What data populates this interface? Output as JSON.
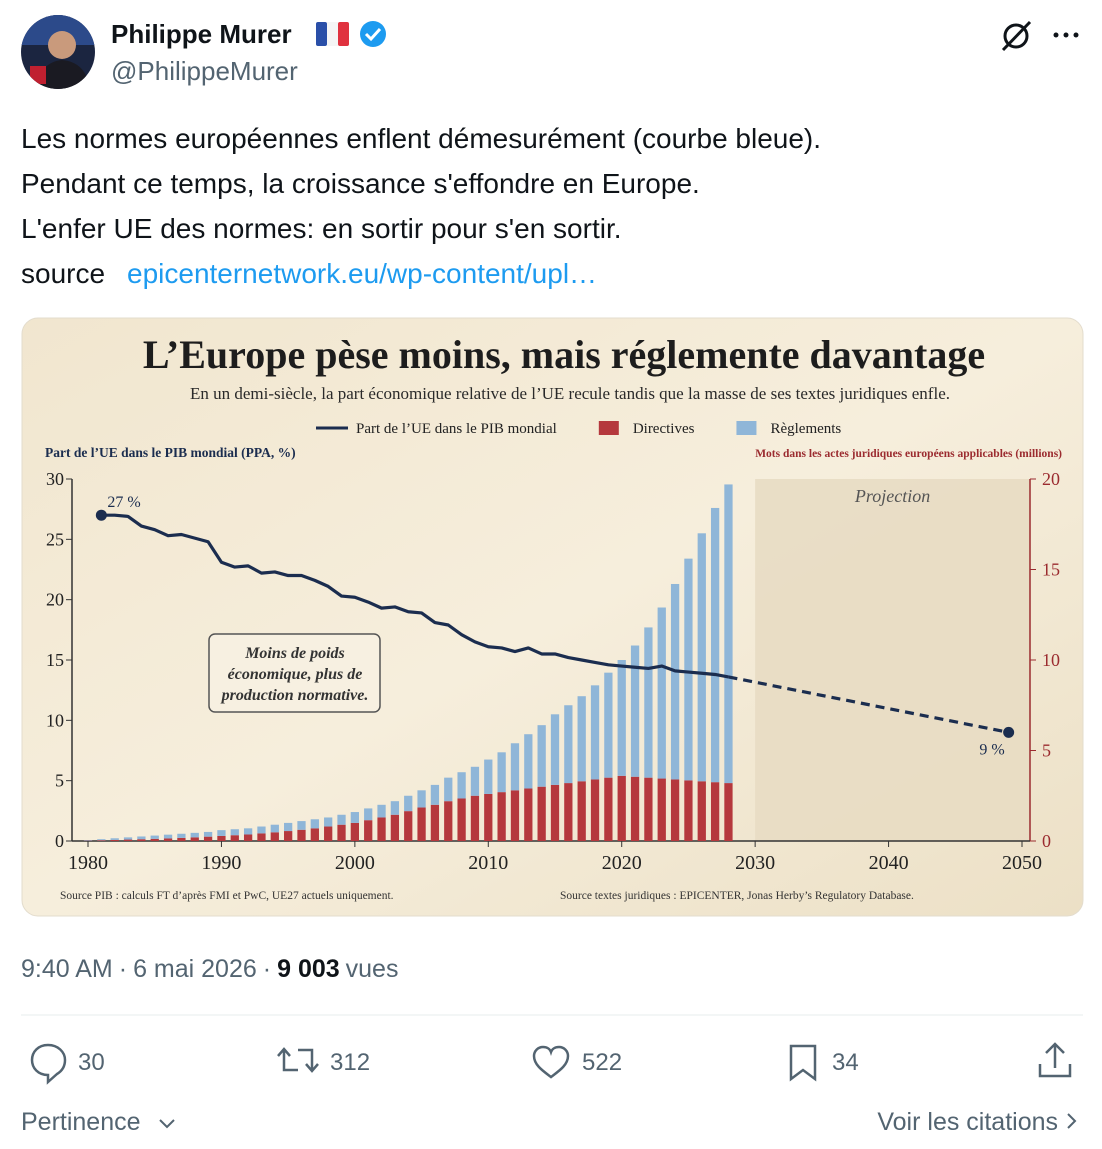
{
  "author": {
    "name": "Philippe Murer",
    "handle": "@PhilippeMurer"
  },
  "text": {
    "lines": [
      "Les normes européennes enflent démesurément (courbe bleue).",
      "Pendant ce temps, la croissance s'effondre en Europe.",
      "L'enfer UE des normes: en sortir pour s'en sortir."
    ],
    "source_label": "source",
    "link": "epicenternetwork.eu/wp-content/upl…"
  },
  "chart_data": {
    "type": "bar",
    "title": "L’Europe pèse moins, mais réglemente davantage",
    "subtitle": "En un demi-siècle, la part économique relative de l’UE recule tandis que la masse de ses textes juridiques enfle.",
    "ylabel": "Part de l’UE dans le PIB mondial (PPA, %)",
    "y2label": "Mots dans les actes juridiques européens applicables (millions)",
    "stacked": true,
    "x": [
      1980,
      1981,
      1982,
      1983,
      1984,
      1985,
      1986,
      1987,
      1988,
      1989,
      1990,
      1991,
      1992,
      1993,
      1994,
      1995,
      1996,
      1997,
      1998,
      1999,
      2000,
      2001,
      2002,
      2003,
      2004,
      2005,
      2006,
      2007,
      2008,
      2009,
      2010,
      2011,
      2012,
      2013,
      2014,
      2015,
      2016,
      2017,
      2018,
      2019,
      2020,
      2021,
      2022,
      2023,
      2024,
      2025,
      2026,
      2027,
      2028
    ],
    "series": [
      {
        "name": "Part de l’UE dans le PIB mondial",
        "type": "line",
        "color": "#1b2d4f",
        "x": [
          1981,
          1982,
          1983,
          1984,
          1985,
          1986,
          1987,
          1988,
          1989,
          1990,
          1991,
          1992,
          1993,
          1994,
          1995,
          1996,
          1997,
          1998,
          1999,
          2000,
          2001,
          2002,
          2003,
          2004,
          2005,
          2006,
          2007,
          2008,
          2009,
          2010,
          2011,
          2012,
          2013,
          2014,
          2015,
          2016,
          2017,
          2018,
          2019,
          2020,
          2021,
          2022,
          2023,
          2024,
          2025,
          2026,
          2027,
          2028
        ],
        "values": [
          27,
          27,
          26.9,
          26.1,
          25.8,
          25.3,
          25.4,
          25.1,
          24.8,
          23.1,
          22.7,
          22.8,
          22.2,
          22.3,
          22,
          22,
          21.6,
          21.1,
          20.3,
          20.2,
          19.8,
          19.3,
          19.4,
          19,
          18.9,
          18.1,
          17.9,
          17.1,
          16.5,
          16.1,
          16,
          15.7,
          16,
          15.5,
          15.5,
          15.2,
          15,
          14.8,
          14.6,
          14.5,
          14.4,
          14.3,
          14.5,
          14.1,
          14,
          13.9,
          13.8,
          13.6
        ]
      },
      {
        "name": "Directives",
        "color": "#b5383d",
        "axis": "y2",
        "values": [
          0.02,
          0.04,
          0.06,
          0.08,
          0.1,
          0.12,
          0.14,
          0.17,
          0.2,
          0.24,
          0.28,
          0.32,
          0.36,
          0.42,
          0.48,
          0.55,
          0.62,
          0.7,
          0.8,
          0.9,
          1,
          1.15,
          1.3,
          1.45,
          1.65,
          1.85,
          2,
          2.2,
          2.35,
          2.5,
          2.6,
          2.7,
          2.8,
          2.9,
          3,
          3.1,
          3.2,
          3.3,
          3.4,
          3.5,
          3.6,
          3.55,
          3.5,
          3.45,
          3.4,
          3.35,
          3.3,
          3.25,
          3.2
        ]
      },
      {
        "name": "Règlements",
        "color": "#8fb6d8",
        "axis": "y2",
        "values": [
          0.03,
          0.06,
          0.09,
          0.12,
          0.15,
          0.18,
          0.21,
          0.23,
          0.25,
          0.26,
          0.32,
          0.33,
          0.34,
          0.38,
          0.42,
          0.45,
          0.48,
          0.5,
          0.5,
          0.55,
          0.6,
          0.65,
          0.7,
          0.75,
          0.85,
          0.95,
          1.1,
          1.3,
          1.45,
          1.6,
          1.9,
          2.2,
          2.6,
          3,
          3.4,
          3.9,
          4.3,
          4.7,
          5.2,
          5.8,
          6.4,
          7.25,
          8.3,
          9.45,
          10.8,
          12.25,
          13.7,
          15.15,
          16.5
        ]
      }
    ],
    "projection": {
      "label": "Projection",
      "start": 2030,
      "x": [
        2028,
        2049
      ],
      "values": [
        13.6,
        9
      ]
    },
    "point_labels": [
      {
        "x": 1981,
        "value": 27,
        "label": "27 %"
      },
      {
        "x": 2049,
        "value": 9,
        "label": "9 %"
      }
    ],
    "annotation": {
      "lines": [
        "Moins de poids",
        "économique, plus de",
        "production normative."
      ]
    },
    "sources": [
      "Source PIB : calculs FT d’après FMI et PwC, UE27 actuels uniquement.",
      "Source textes juridiques : EPICENTER, Jonas Herby’s Regulatory Database."
    ],
    "xlim": [
      1978.8,
      2050.6
    ],
    "xticks": [
      1980,
      1990,
      2000,
      2010,
      2020,
      2030,
      2040,
      2050
    ],
    "ylim": [
      0,
      30
    ],
    "yticks": [
      0,
      5,
      10,
      15,
      20,
      25,
      30
    ],
    "y2lim": [
      0,
      20
    ],
    "y2ticks": [
      0,
      5,
      10,
      15,
      20
    ],
    "legend": "top"
  },
  "meta": {
    "time": "9:40 AM",
    "separator": "·",
    "date": "6 mai 2026",
    "views": "9 003",
    "views_label": "vues"
  },
  "stats": {
    "replies": 30,
    "reposts": 312,
    "likes": 522,
    "bookmarks": 34
  },
  "footer": {
    "sort": "Pertinence",
    "quotes": "Voir les citations"
  }
}
